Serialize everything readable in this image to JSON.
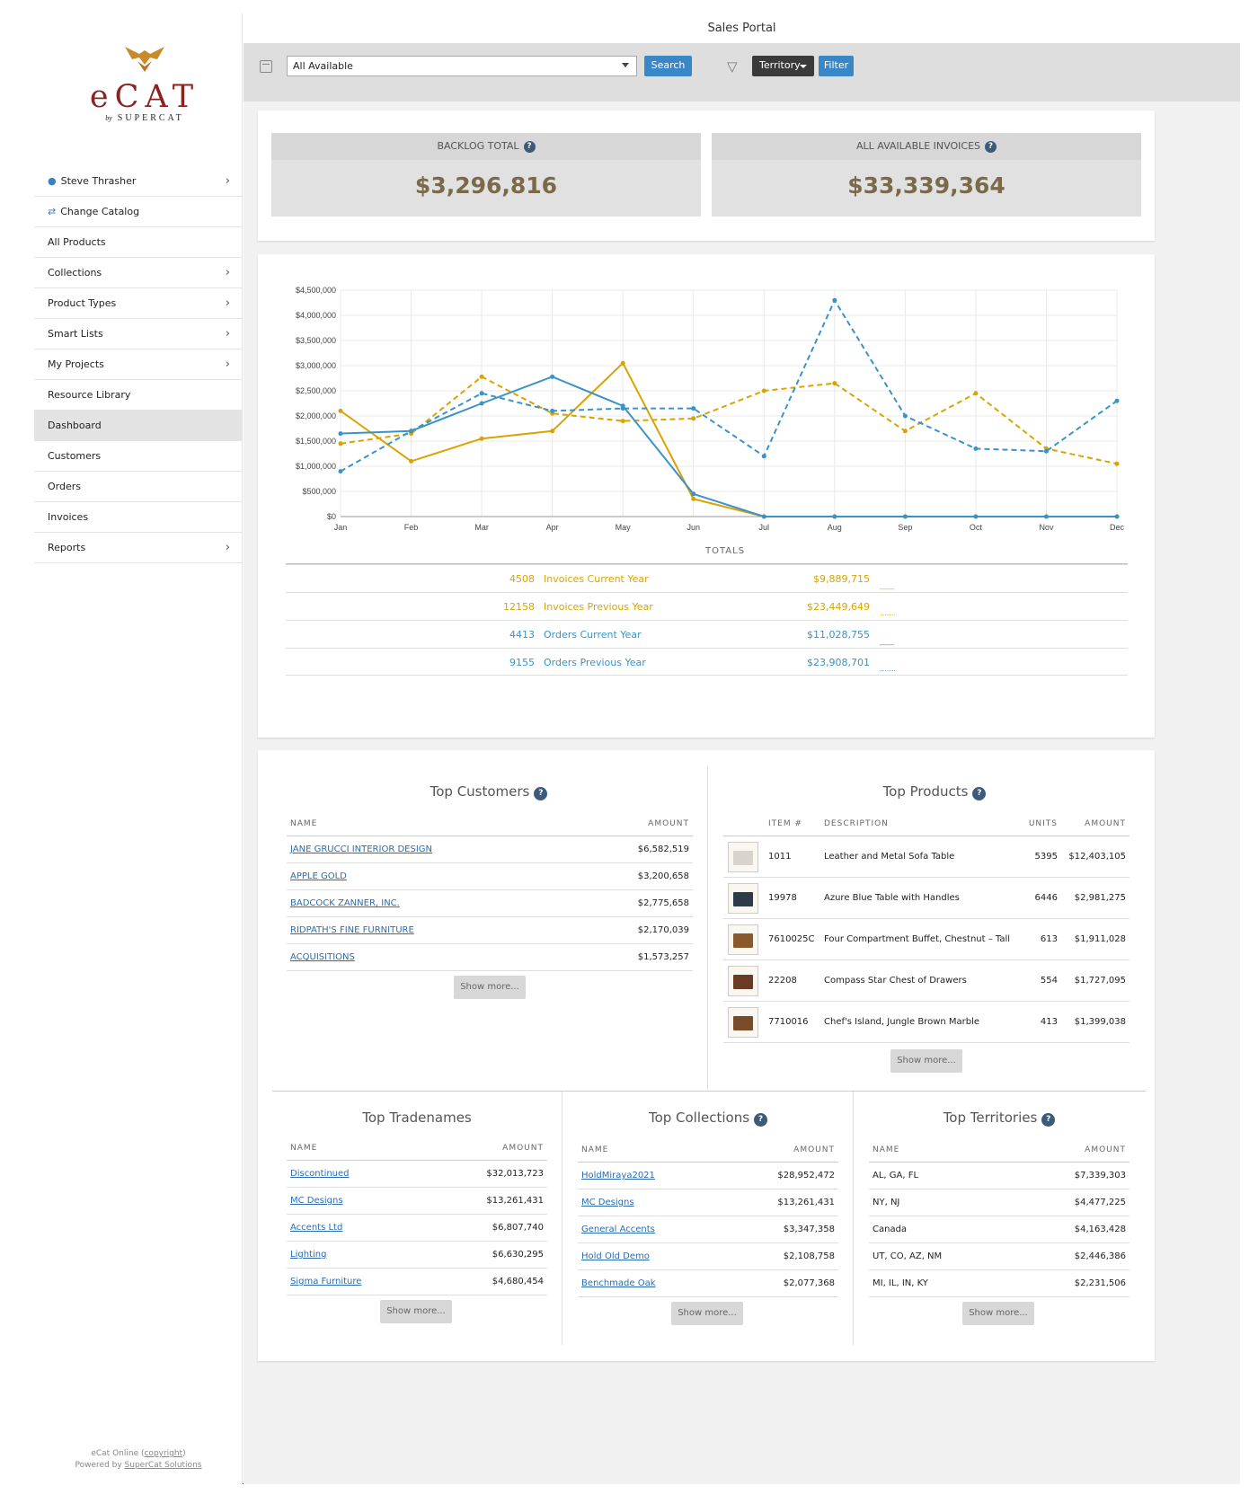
{
  "sidebar": {
    "logo": {
      "wordmark": "eCAT",
      "by": "by",
      "brand": "SUPERCAT"
    },
    "items": [
      {
        "label": "Steve Thrasher",
        "icon": "user-icon",
        "chevron": true
      },
      {
        "label": "Change Catalog",
        "icon": "swap-icon",
        "chevron": false
      },
      {
        "label": "All Products",
        "chevron": false
      },
      {
        "label": "Collections",
        "chevron": true
      },
      {
        "label": "Product Types",
        "chevron": true
      },
      {
        "label": "Smart Lists",
        "chevron": true
      },
      {
        "label": "My Projects",
        "chevron": true
      },
      {
        "label": "Resource Library",
        "chevron": false
      },
      {
        "label": "Dashboard",
        "chevron": false,
        "active": true
      },
      {
        "label": "Customers",
        "chevron": false
      },
      {
        "label": "Orders",
        "chevron": false
      },
      {
        "label": "Invoices",
        "chevron": false
      },
      {
        "label": "Reports",
        "chevron": true
      }
    ],
    "footer": {
      "line1_pre": "eCat Online (",
      "line1_link": "copyright",
      "line1_post": ")",
      "line2_pre": "Powered by ",
      "line2_link": "SuperCat Solutions"
    }
  },
  "header": {
    "title": "Sales Portal"
  },
  "toolbar": {
    "select_value": "All Available",
    "search_label": "Search",
    "territory_label": "Territory",
    "filter_label": "Filter"
  },
  "kpis": {
    "backlog": {
      "label": "BACKLOG TOTAL",
      "value": "$3,296,816"
    },
    "invoices": {
      "label": "ALL AVAILABLE INVOICES",
      "value": "$33,339,364"
    }
  },
  "colors": {
    "gold": "#d9a400",
    "blue": "#3a93c8"
  },
  "chart_data": {
    "type": "line",
    "x": [
      "Jan",
      "Feb",
      "Mar",
      "Apr",
      "May",
      "Jun",
      "Jul",
      "Aug",
      "Sep",
      "Oct",
      "Nov",
      "Dec"
    ],
    "y_ticks": [
      "$0",
      "$500,000",
      "$1,000,000",
      "$1,500,000",
      "$2,000,000",
      "$2,500,000",
      "$3,000,000",
      "$3,500,000",
      "$4,000,000",
      "$4,500,000"
    ],
    "ylim": [
      0,
      4500000
    ],
    "grid": true,
    "series": [
      {
        "name": "Invoices Current Year",
        "color": "#d9a400",
        "style": "solid",
        "values": [
          2100000,
          1100000,
          1550000,
          1700000,
          3050000,
          350000,
          0,
          0,
          0,
          0,
          0,
          0
        ]
      },
      {
        "name": "Invoices Previous Year",
        "color": "#d9a400",
        "style": "dashed",
        "values": [
          1450000,
          1650000,
          2780000,
          2050000,
          1900000,
          1950000,
          2500000,
          2650000,
          1700000,
          2450000,
          1350000,
          1050000
        ]
      },
      {
        "name": "Orders Current Year",
        "color": "#3a93c8",
        "style": "solid",
        "values": [
          1650000,
          1700000,
          2250000,
          2780000,
          2200000,
          450000,
          0,
          0,
          0,
          0,
          0,
          0
        ]
      },
      {
        "name": "Orders Previous Year",
        "color": "#3a93c8",
        "style": "dashed",
        "values": [
          900000,
          1700000,
          2450000,
          2100000,
          2150000,
          2150000,
          1200000,
          4300000,
          2000000,
          1350000,
          1300000,
          2300000
        ]
      }
    ]
  },
  "totals": {
    "heading": "TOTALS",
    "rows": [
      {
        "count": "4508",
        "label": "Invoices Current Year",
        "amount": "$9,889,715",
        "key": "____",
        "color": "#d9a400"
      },
      {
        "count": "12158",
        "label": "Invoices Previous Year",
        "amount": "$23,449,649",
        "key": ".......",
        "color": "#d9a400"
      },
      {
        "count": "4413",
        "label": "Orders Current Year",
        "amount": "$11,028,755",
        "key": "____",
        "color": "#3a93c8"
      },
      {
        "count": "9155",
        "label": "Orders Previous Year",
        "amount": "$23,908,701",
        "key": ".......",
        "color": "#3a93c8"
      }
    ]
  },
  "top_customers": {
    "title": "Top Customers",
    "col_name": "NAME",
    "col_amount": "AMOUNT",
    "rows": [
      {
        "name": "JANE GRUCCI INTERIOR DESIGN",
        "amount": "$6,582,519"
      },
      {
        "name": "APPLE GOLD",
        "amount": "$3,200,658"
      },
      {
        "name": "BADCOCK ZANNER, INC.",
        "amount": "$2,775,658"
      },
      {
        "name": "RIDPATH'S FINE FURNITURE",
        "amount": "$2,170,039"
      },
      {
        "name": "ACQUISITIONS",
        "amount": "$1,573,257"
      }
    ],
    "show_more": "Show more..."
  },
  "top_products": {
    "title": "Top Products",
    "col_item": "ITEM #",
    "col_desc": "DESCRIPTION",
    "col_units": "UNITS",
    "col_amount": "AMOUNT",
    "rows": [
      {
        "item": "1011",
        "desc": "Leather and Metal Sofa Table",
        "units": "5395",
        "amount": "$12,403,105"
      },
      {
        "item": "19978",
        "desc": "Azure Blue Table with Handles",
        "units": "6446",
        "amount": "$2,981,275"
      },
      {
        "item": "7610025C",
        "desc": "Four Compartment Buffet, Chestnut – Tall",
        "units": "613",
        "amount": "$1,911,028"
      },
      {
        "item": "22208",
        "desc": "Compass Star Chest of Drawers",
        "units": "554",
        "amount": "$1,727,095"
      },
      {
        "item": "7710016",
        "desc": "Chef's Island, Jungle Brown Marble",
        "units": "413",
        "amount": "$1,399,038"
      }
    ],
    "show_more": "Show more..."
  },
  "top_tradenames": {
    "title": "Top Tradenames",
    "col_name": "NAME",
    "col_amount": "AMOUNT",
    "rows": [
      {
        "name": "Discontinued",
        "amount": "$32,013,723"
      },
      {
        "name": "MC Designs",
        "amount": "$13,261,431"
      },
      {
        "name": "Accents Ltd",
        "amount": "$6,807,740"
      },
      {
        "name": "Lighting",
        "amount": "$6,630,295"
      },
      {
        "name": "Sigma Furniture",
        "amount": "$4,680,454"
      }
    ],
    "show_more": "Show more..."
  },
  "top_collections": {
    "title": "Top Collections",
    "col_name": "NAME",
    "col_amount": "AMOUNT",
    "rows": [
      {
        "name": "HoldMiraya2021",
        "amount": "$28,952,472"
      },
      {
        "name": "MC Designs",
        "amount": "$13,261,431"
      },
      {
        "name": "General Accents",
        "amount": "$3,347,358"
      },
      {
        "name": "Hold Old Demo",
        "amount": "$2,108,758"
      },
      {
        "name": "Benchmade Oak",
        "amount": "$2,077,368"
      }
    ],
    "show_more": "Show more..."
  },
  "top_territories": {
    "title": "Top Territories",
    "col_name": "NAME",
    "col_amount": "AMOUNT",
    "rows": [
      {
        "name": "AL, GA, FL",
        "amount": "$7,339,303"
      },
      {
        "name": "NY, NJ",
        "amount": "$4,477,225"
      },
      {
        "name": "Canada",
        "amount": "$4,163,428"
      },
      {
        "name": "UT, CO, AZ, NM",
        "amount": "$2,446,386"
      },
      {
        "name": "MI, IL, IN, KY",
        "amount": "$2,231,506"
      }
    ],
    "show_more": "Show more..."
  }
}
